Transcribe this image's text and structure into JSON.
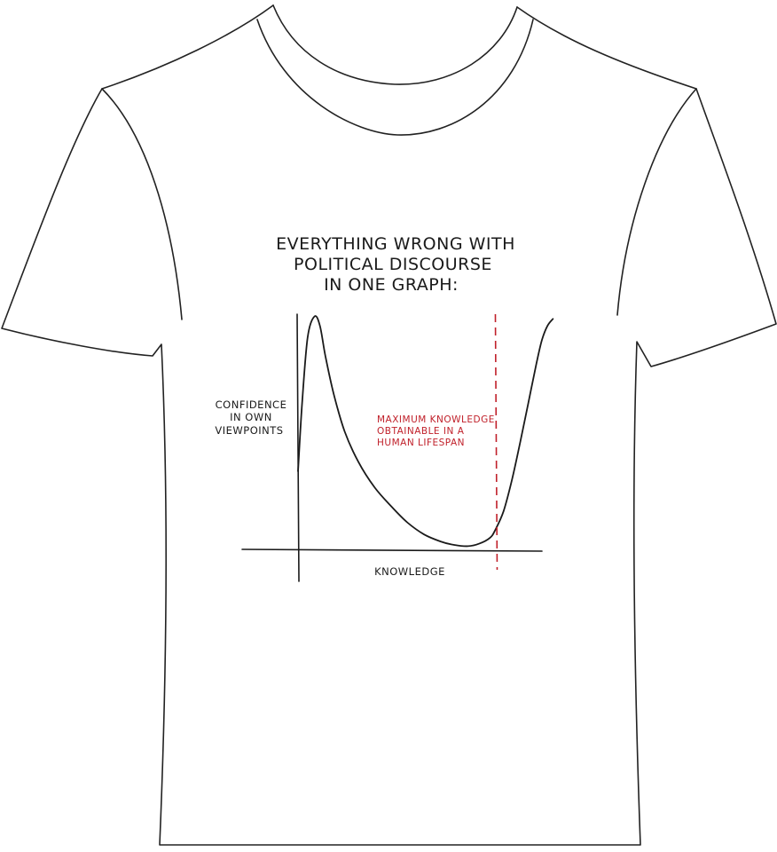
{
  "colors": {
    "shirt_outline": "#222222",
    "ink": "#1a1a1a",
    "annotation_red": "#c0202a",
    "background": "#ffffff"
  },
  "chart_data": {
    "type": "line",
    "title": "EVERYTHING WRONG WITH POLITICAL DISCOURSE IN ONE GRAPH:",
    "title_lines": [
      "EVERYTHING WRONG WITH",
      "POLITICAL DISCOURSE",
      "IN ONE GRAPH:"
    ],
    "xlabel": "KNOWLEDGE",
    "ylabel": "CONFIDENCE IN OWN VIEWPOINTS",
    "ylabel_lines": [
      "CONFIDENCE",
      "IN OWN",
      "VIEWPOINTS"
    ],
    "ticks": "none",
    "grid": false,
    "xlim": [
      0,
      10
    ],
    "ylim": [
      0,
      10
    ],
    "series": [
      {
        "x": [
          0.0,
          0.15,
          0.35,
          0.6,
          0.8,
          1.0,
          1.3,
          1.7,
          2.2,
          2.8,
          3.4,
          4.0,
          4.6,
          5.2,
          5.7,
          6.2,
          6.6,
          7.0,
          7.2,
          7.5,
          7.8,
          8.1,
          8.4,
          8.7,
          8.9,
          9.1,
          9.3
        ],
        "y": [
          3.3,
          6.2,
          9.0,
          9.9,
          9.5,
          8.2,
          6.6,
          5.0,
          3.7,
          2.6,
          1.8,
          1.1,
          0.6,
          0.3,
          0.15,
          0.1,
          0.2,
          0.45,
          0.8,
          1.6,
          2.9,
          4.5,
          6.2,
          7.9,
          8.9,
          9.5,
          9.8
        ]
      }
    ],
    "annotations": [
      {
        "text": "MAXIMUM KNOWLEDGE OBTAINABLE IN A HUMAN LIFESPAN",
        "text_lines": [
          "MAXIMUM KNOWLEDGE",
          "OBTAINABLE IN A",
          "HUMAN LIFESPAN"
        ],
        "x": 7.2,
        "style": "dashed vertical line"
      }
    ]
  }
}
